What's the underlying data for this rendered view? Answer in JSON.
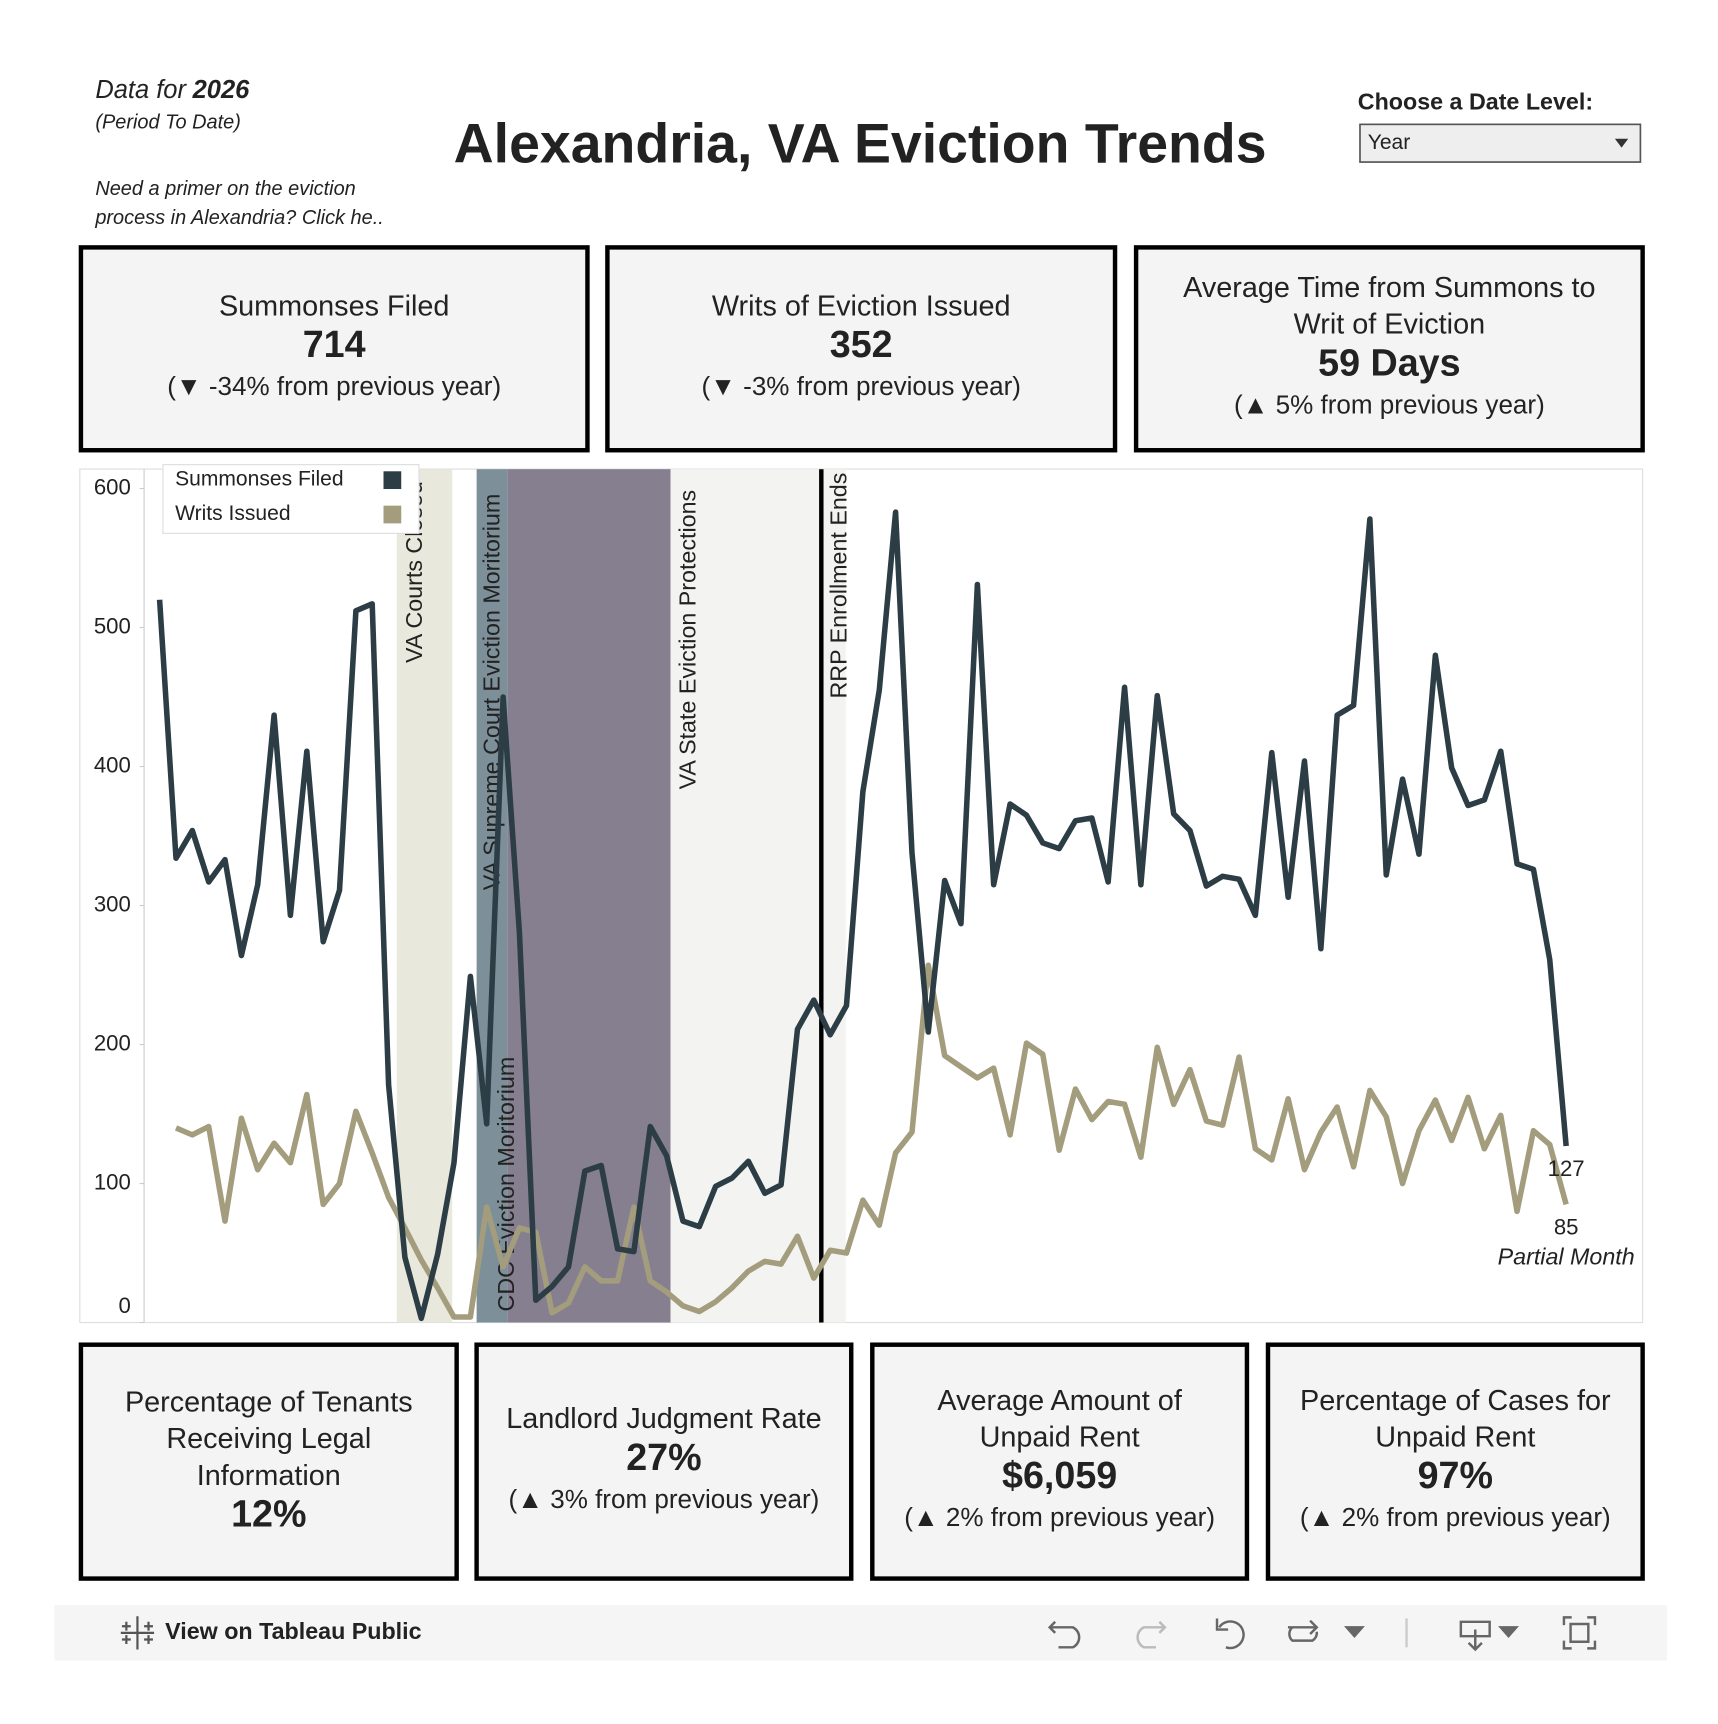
{
  "header": {
    "data_for": "Data for",
    "year": "2026",
    "period": "(Period To Date)",
    "primer": [
      "Need a primer on the eviction",
      "process in Alexandria? Click he.."
    ],
    "title": "Alexandria, VA Eviction Trends",
    "date_level_label": "Choose a Date Level:",
    "date_level_value": "Year"
  },
  "kpis_top": [
    {
      "title": [
        "Summonses Filed"
      ],
      "value": "714",
      "change": "(▼ -34% from previous year)"
    },
    {
      "title": [
        "Writs of Eviction Issued"
      ],
      "value": "352",
      "change": "(▼ -3% from previous year)"
    },
    {
      "title": [
        "Average Time from Summons to",
        "Writ of Eviction"
      ],
      "value": "59 Days",
      "change": "(▲ 5% from previous year)"
    }
  ],
  "chart_data": {
    "type": "line",
    "categories": [
      null,
      null,
      null,
      null,
      null,
      null,
      null,
      null,
      null,
      null,
      null,
      null,
      null,
      null,
      null,
      null,
      null,
      null,
      null,
      null,
      null,
      null,
      null,
      null,
      null,
      null,
      null,
      null,
      null,
      null,
      null,
      null,
      null,
      null,
      null,
      null,
      null,
      null,
      null,
      null,
      null,
      null,
      null,
      null,
      null,
      null,
      null,
      null,
      null,
      null,
      null,
      null,
      null,
      null,
      null,
      null,
      null,
      null,
      null,
      null,
      null,
      null,
      null,
      null,
      null,
      null,
      null,
      null,
      null,
      null,
      null,
      null,
      null,
      null,
      null,
      null,
      null,
      null,
      null,
      null,
      null,
      null,
      null,
      null,
      null,
      null,
      null
    ],
    "series": [
      {
        "name": "Summonses Filed",
        "color": "#2c3d45",
        "values": [
          520,
          334,
          354,
          317,
          333,
          264,
          315,
          437,
          293,
          411,
          274,
          311,
          512,
          517,
          171,
          47,
          3,
          49,
          115,
          249,
          143,
          450,
          281,
          16,
          26,
          40,
          109,
          113,
          53,
          51,
          141,
          120,
          73,
          69,
          98,
          104,
          116,
          93,
          99,
          211,
          232,
          207,
          228,
          382,
          455,
          583,
          338,
          209,
          318,
          287,
          531,
          315,
          373,
          365,
          345,
          341,
          361,
          363,
          317,
          457,
          315,
          451,
          366,
          354,
          314,
          321,
          319,
          293,
          410,
          306,
          404,
          269,
          437,
          444,
          578,
          322,
          391,
          337,
          480,
          399,
          372,
          376,
          411,
          330,
          326,
          261,
          127
        ]
      },
      {
        "name": "Writs Issued",
        "color": "#a39d7e",
        "values": [
          null,
          140,
          135,
          141,
          73,
          147,
          110,
          129,
          115,
          164,
          85,
          100,
          152,
          122,
          90,
          68,
          45,
          25,
          4,
          4,
          83,
          40,
          68,
          65,
          7,
          14,
          40,
          30,
          30,
          83,
          30,
          22,
          12,
          8,
          15,
          25,
          37,
          44,
          42,
          62,
          32,
          52,
          50,
          88,
          70,
          122,
          137,
          257,
          192,
          184,
          176,
          183,
          135,
          201,
          193,
          124,
          168,
          146,
          159,
          157,
          119,
          198,
          157,
          182,
          145,
          142,
          191,
          125,
          117,
          161,
          110,
          137,
          155,
          112,
          167,
          148,
          100,
          138,
          160,
          131,
          162,
          125,
          149,
          80,
          138,
          128,
          85
        ]
      }
    ],
    "ylim": [
      0,
      614
    ],
    "yticks": [
      0,
      100,
      200,
      300,
      400,
      500,
      600
    ],
    "grid": false,
    "legend": "top-left",
    "annotations": [
      "VA Courts Closed",
      "VA Supreme Court Eviction Moritorium",
      "CDC Eviction Moritorium",
      "VA State Eviction Protections",
      "RRP Enrollment Ends"
    ],
    "note": "Partial Month"
  },
  "kpis_bottom": [
    {
      "title": [
        "Percentage of Tenants",
        "Receiving Legal",
        "Information"
      ],
      "value": "12%"
    },
    {
      "title": [
        "Landlord Judgment Rate"
      ],
      "value": "27%",
      "change": "(▲ 3% from previous year)"
    },
    {
      "title": [
        "Average Amount of",
        "Unpaid Rent"
      ],
      "value": "$6,059",
      "change": "(▲ 2% from previous year)"
    },
    {
      "title": [
        "Percentage of Cases for",
        "Unpaid Rent"
      ],
      "value": "97%",
      "change": "(▲ 2% from previous year)"
    }
  ],
  "footer": {
    "link": "View on Tableau Public"
  }
}
